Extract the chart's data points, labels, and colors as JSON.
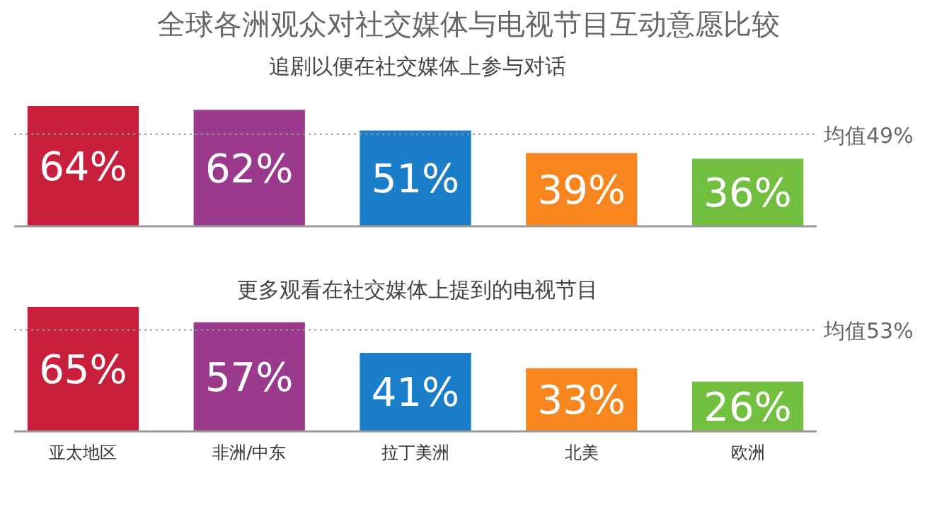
{
  "chart_data": [
    {
      "type": "bar",
      "title": "全球各洲观众对社交媒体与电视节目互动意愿比较",
      "subtitle": "追剧以便在社交媒体上参与对话",
      "categories": [
        null,
        null,
        null,
        null,
        null
      ],
      "values": [
        64,
        62,
        51,
        39,
        36
      ],
      "value_labels": [
        "64%",
        "62%",
        "51%",
        "39%",
        "36%"
      ],
      "colors": [
        "#c8203c",
        "#9b3a8c",
        "#1a7fc8",
        "#f7861f",
        "#72bf3f"
      ],
      "ref_lines": [
        {
          "axis": "y",
          "value": 49,
          "label": "均值49%",
          "color": "#999999",
          "line_style": "dotted"
        }
      ],
      "tick_labels": false
    },
    {
      "type": "bar",
      "subtitle": "更多观看在社交媒体上提到的电视节目",
      "categories": [
        "亚太地区",
        "非洲/中东",
        "拉丁美洲",
        "北美",
        "欧洲"
      ],
      "values": [
        65,
        57,
        41,
        33,
        26
      ],
      "value_labels": [
        "65%",
        "57%",
        "41%",
        "33%",
        "26%"
      ],
      "colors": [
        "#c8203c",
        "#9b3a8c",
        "#1a7fc8",
        "#f7861f",
        "#72bf3f"
      ],
      "ref_lines": [
        {
          "axis": "y",
          "value": 53,
          "label": "均值53%",
          "color": "#999999",
          "line_style": "dotted"
        }
      ],
      "tick_labels": "x"
    }
  ]
}
